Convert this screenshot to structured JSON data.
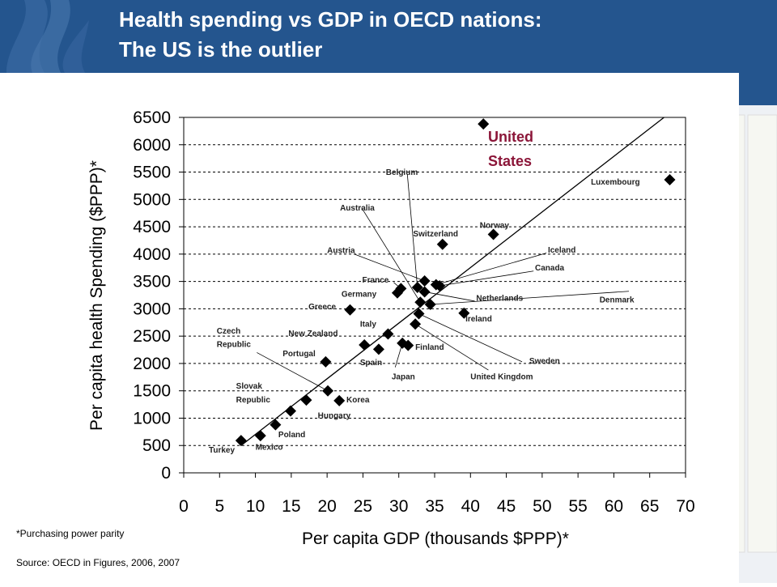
{
  "header": {
    "title_line1": "Health spending vs GDP in OECD nations:",
    "title_line2": "The US is the outlier"
  },
  "colors": {
    "header_bg": "#24558e",
    "marker": "#000000",
    "us_label": "#8b1538"
  },
  "icons": [
    "flame-logo-icon"
  ],
  "chart_data": {
    "type": "scatter",
    "title": "",
    "xlabel": "Per capita GDP (thousands $PPP)*",
    "ylabel": "Per capita health Spending ($PPP)*",
    "xlim": [
      0,
      70
    ],
    "ylim": [
      0,
      6500
    ],
    "xticks": [
      "0",
      "5",
      "10",
      "15",
      "20",
      "25",
      "30",
      "35",
      "40",
      "45",
      "50",
      "55",
      "60",
      "65",
      "70"
    ],
    "yticks": [
      "0",
      "500",
      "1000",
      "1500",
      "2000",
      "2500",
      "3000",
      "3500",
      "4000",
      "4500",
      "5000",
      "5500",
      "6000",
      "6500"
    ],
    "grid": "horizontal dashed",
    "points": [
      {
        "country": "Turkey",
        "x": 8,
        "y": 590
      },
      {
        "country": "Mexico",
        "x": 10.7,
        "y": 680
      },
      {
        "country": "Poland",
        "x": 12.8,
        "y": 880
      },
      {
        "country": "Slovak Republic",
        "x": 14.9,
        "y": 1130
      },
      {
        "country": "Hungary",
        "x": 17.1,
        "y": 1330
      },
      {
        "country": "Korea",
        "x": 21.7,
        "y": 1320
      },
      {
        "country": "Czech Republic",
        "x": 20.1,
        "y": 1500
      },
      {
        "country": "Portugal",
        "x": 19.8,
        "y": 2030
      },
      {
        "country": "Greece",
        "x": 23.2,
        "y": 2980
      },
      {
        "country": "New Zealand",
        "x": 25.2,
        "y": 2340
      },
      {
        "country": "Spain",
        "x": 27.2,
        "y": 2260
      },
      {
        "country": "Italy",
        "x": 28.5,
        "y": 2540
      },
      {
        "country": "Japan",
        "x": 30.5,
        "y": 2370
      },
      {
        "country": "Finland",
        "x": 31.3,
        "y": 2330
      },
      {
        "country": "Germany",
        "x": 29.8,
        "y": 3290
      },
      {
        "country": "France",
        "x": 30.3,
        "y": 3370
      },
      {
        "country": "United Kingdom",
        "x": 32.3,
        "y": 2720
      },
      {
        "country": "Sweden",
        "x": 32.8,
        "y": 2910
      },
      {
        "country": "Australia",
        "x": 33,
        "y": 3120
      },
      {
        "country": "Belgium",
        "x": 32.6,
        "y": 3390
      },
      {
        "country": "Austria",
        "x": 33.6,
        "y": 3510
      },
      {
        "country": "Netherlands",
        "x": 33.6,
        "y": 3310
      },
      {
        "country": "Denmark",
        "x": 34.4,
        "y": 3080
      },
      {
        "country": "Canada",
        "x": 35.7,
        "y": 3420
      },
      {
        "country": "Switzerland",
        "x": 36.1,
        "y": 4180
      },
      {
        "country": "Iceland",
        "x": 35.2,
        "y": 3440
      },
      {
        "country": "Ireland",
        "x": 39.1,
        "y": 2920
      },
      {
        "country": "Norway",
        "x": 43.2,
        "y": 4360
      },
      {
        "country": "United States",
        "x": 41.8,
        "y": 6380
      },
      {
        "country": "Luxembourg",
        "x": 67.8,
        "y": 5360
      }
    ],
    "trend_line": {
      "from": [
        8,
        500
      ],
      "to": [
        67,
        6500
      ]
    },
    "labels": [
      {
        "text": "Turkey",
        "x": 3.5,
        "y": 370,
        "size": 10
      },
      {
        "text": "Mexico",
        "x": 10,
        "y": 420,
        "size": 10
      },
      {
        "text": "Poland",
        "x": 13.2,
        "y": 650,
        "size": 10
      },
      {
        "text": "Slovak",
        "x": 7.3,
        "y": 1540,
        "size": 10
      },
      {
        "text": "Republic",
        "x": 7.3,
        "y": 1290,
        "size": 10
      },
      {
        "text": "Hungary",
        "x": 18.7,
        "y": 1000,
        "size": 10
      },
      {
        "text": "Korea",
        "x": 22.7,
        "y": 1290,
        "size": 10
      },
      {
        "text": "Czech",
        "x": 4.6,
        "y": 2550,
        "size": 10
      },
      {
        "text": "Republic",
        "x": 4.6,
        "y": 2300,
        "size": 10
      },
      {
        "text": "Portugal",
        "x": 13.8,
        "y": 2130,
        "size": 10
      },
      {
        "text": "Greece",
        "x": 17.4,
        "y": 2990,
        "size": 10
      },
      {
        "text": "New Zealand",
        "x": 14.6,
        "y": 2500,
        "size": 10
      },
      {
        "text": "Spain",
        "x": 24.6,
        "y": 1970,
        "size": 10
      },
      {
        "text": "Italy",
        "x": 24.6,
        "y": 2670,
        "size": 10
      },
      {
        "text": "Japan",
        "x": 29,
        "y": 1710,
        "size": 10
      },
      {
        "text": "Finland",
        "x": 32.3,
        "y": 2250,
        "size": 10
      },
      {
        "text": "Germany",
        "x": 22,
        "y": 3220,
        "size": 10
      },
      {
        "text": "France",
        "x": 24.9,
        "y": 3480,
        "size": 10
      },
      {
        "text": "United Kingdom",
        "x": 40,
        "y": 1710,
        "size": 10
      },
      {
        "text": "Sweden",
        "x": 48.2,
        "y": 2000,
        "size": 10
      },
      {
        "text": "Australia",
        "x": 21.8,
        "y": 4800,
        "size": 10
      },
      {
        "text": "Belgium",
        "x": 28.2,
        "y": 5450,
        "size": 10
      },
      {
        "text": "Austria",
        "x": 20,
        "y": 4020,
        "size": 10
      },
      {
        "text": "Netherlands",
        "x": 40.8,
        "y": 3150,
        "size": 10
      },
      {
        "text": "Denmark",
        "x": 58,
        "y": 3120,
        "size": 10
      },
      {
        "text": "Canada",
        "x": 49,
        "y": 3700,
        "size": 10
      },
      {
        "text": "Switzerland",
        "x": 32,
        "y": 4320,
        "size": 10
      },
      {
        "text": "Iceland",
        "x": 50.8,
        "y": 4030,
        "size": 10
      },
      {
        "text": "Ireland",
        "x": 39.3,
        "y": 2770,
        "size": 10
      },
      {
        "text": "Norway",
        "x": 41.3,
        "y": 4480,
        "size": 10
      },
      {
        "text": "Luxembourg",
        "x": 56.8,
        "y": 5270,
        "size": 10
      }
    ],
    "us_label": [
      "United",
      "States"
    ],
    "leaders": [
      {
        "from": [
          33,
          3120
        ],
        "to": [
          24.8,
          4850
        ]
      },
      {
        "from": [
          32.6,
          3390
        ],
        "to": [
          31.2,
          5450
        ]
      },
      {
        "from": [
          33.6,
          3510
        ],
        "to": [
          23.8,
          4000
        ]
      },
      {
        "from": [
          35.2,
          3440
        ],
        "to": [
          50.6,
          4020
        ]
      },
      {
        "from": [
          35.7,
          3420
        ],
        "to": [
          48.8,
          3690
        ]
      },
      {
        "from": [
          33.6,
          3310
        ],
        "to": [
          40.6,
          3140
        ]
      },
      {
        "from": [
          34.4,
          3080
        ],
        "to": [
          62.1,
          3320
        ]
      },
      {
        "from": [
          30.3,
          3370
        ],
        "to": [
          29.3,
          3480
        ]
      },
      {
        "from": [
          32.8,
          2910
        ],
        "to": [
          47.2,
          2030
        ]
      },
      {
        "from": [
          32.3,
          2720
        ],
        "to": [
          42.5,
          1880
        ]
      },
      {
        "from": [
          30.5,
          2370
        ],
        "to": [
          29.5,
          1930
        ]
      },
      {
        "from": [
          20.1,
          1500
        ],
        "to": [
          10.2,
          2200
        ]
      }
    ]
  },
  "footnote": "*Purchasing power parity",
  "source": "Source: OECD in Figures, 2006, 2007"
}
